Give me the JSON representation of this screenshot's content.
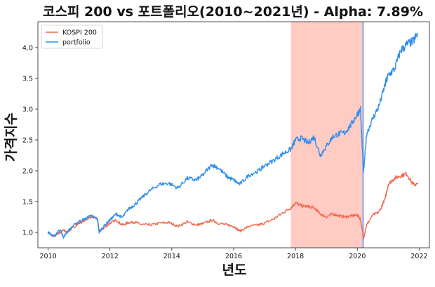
{
  "chart_data": {
    "type": "line",
    "title": "코스피 200 vs 포트폴리오(2010~2021년) - Alpha: 7.89%",
    "xlabel": "년도",
    "ylabel": "가격지수",
    "xlim": [
      2009.67,
      2022.33
    ],
    "ylim": [
      0.75,
      4.42
    ],
    "x_ticks": [
      {
        "value": 2010,
        "label": "2010"
      },
      {
        "value": 2012,
        "label": "2012"
      },
      {
        "value": 2014,
        "label": "2014"
      },
      {
        "value": 2016,
        "label": "2016"
      },
      {
        "value": 2018,
        "label": "2018"
      },
      {
        "value": 2020,
        "label": "2020"
      },
      {
        "value": 2022,
        "label": "2022"
      }
    ],
    "y_ticks": [
      {
        "value": 1.0,
        "label": "1.0"
      },
      {
        "value": 1.5,
        "label": "1.5"
      },
      {
        "value": 2.0,
        "label": "2.0"
      },
      {
        "value": 2.5,
        "label": "2.5"
      },
      {
        "value": 3.0,
        "label": "3.0"
      },
      {
        "value": 3.5,
        "label": "3.5"
      },
      {
        "value": 4.0,
        "label": "4.0"
      }
    ],
    "legend_position": "top-left",
    "grid": false,
    "shaded_regions": [
      {
        "x_start": 2017.85,
        "x_end": 2020.15,
        "color": "#ffcbc2"
      },
      {
        "x_start": 2020.15,
        "x_end": 2020.22,
        "color": "#b4b8e8"
      }
    ],
    "series": [
      {
        "name": "KOSPI 200",
        "color": "#f4674c",
        "x": [
          2010.0,
          2010.1,
          2010.2,
          2010.3,
          2010.4,
          2010.5,
          2010.6,
          2010.8,
          2011.0,
          2011.2,
          2011.4,
          2011.6,
          2011.65,
          2011.8,
          2012.0,
          2012.2,
          2012.4,
          2012.6,
          2012.8,
          2013.0,
          2013.3,
          2013.6,
          2013.9,
          2014.2,
          2014.5,
          2014.8,
          2015.0,
          2015.3,
          2015.5,
          2015.8,
          2016.0,
          2016.2,
          2016.5,
          2016.8,
          2017.0,
          2017.3,
          2017.6,
          2017.85,
          2018.0,
          2018.2,
          2018.4,
          2018.6,
          2018.8,
          2019.0,
          2019.2,
          2019.4,
          2019.6,
          2019.8,
          2020.0,
          2020.1,
          2020.2,
          2020.3,
          2020.5,
          2020.7,
          2020.9,
          2021.0,
          2021.2,
          2021.4,
          2021.6,
          2021.8,
          2021.95
        ],
        "values": [
          1.0,
          0.96,
          0.93,
          0.98,
          1.0,
          1.04,
          1.0,
          1.07,
          1.15,
          1.2,
          1.26,
          1.22,
          1.02,
          1.07,
          1.15,
          1.2,
          1.12,
          1.16,
          1.17,
          1.13,
          1.12,
          1.15,
          1.16,
          1.1,
          1.17,
          1.12,
          1.14,
          1.2,
          1.15,
          1.12,
          1.1,
          1.02,
          1.1,
          1.12,
          1.15,
          1.22,
          1.32,
          1.4,
          1.48,
          1.43,
          1.42,
          1.4,
          1.3,
          1.25,
          1.3,
          1.27,
          1.25,
          1.27,
          1.28,
          1.22,
          0.9,
          1.12,
          1.28,
          1.33,
          1.55,
          1.78,
          1.88,
          1.92,
          1.95,
          1.78,
          1.78
        ]
      },
      {
        "name": "portfolio",
        "color": "#2e8ef0",
        "x": [
          2010.0,
          2010.1,
          2010.2,
          2010.3,
          2010.4,
          2010.5,
          2010.6,
          2010.8,
          2011.0,
          2011.2,
          2011.4,
          2011.6,
          2011.65,
          2011.8,
          2012.0,
          2012.2,
          2012.4,
          2012.6,
          2012.8,
          2013.0,
          2013.3,
          2013.6,
          2013.9,
          2014.2,
          2014.5,
          2014.8,
          2015.0,
          2015.3,
          2015.5,
          2015.8,
          2016.0,
          2016.2,
          2016.5,
          2016.8,
          2017.0,
          2017.3,
          2017.6,
          2017.85,
          2018.0,
          2018.2,
          2018.4,
          2018.6,
          2018.8,
          2019.0,
          2019.2,
          2019.4,
          2019.6,
          2019.8,
          2020.0,
          2020.1,
          2020.2,
          2020.3,
          2020.5,
          2020.7,
          2020.9,
          2021.0,
          2021.2,
          2021.4,
          2021.6,
          2021.8,
          2021.95
        ],
        "values": [
          1.0,
          0.97,
          0.94,
          1.0,
          1.04,
          0.92,
          1.0,
          1.1,
          1.18,
          1.22,
          1.28,
          1.2,
          1.0,
          1.1,
          1.2,
          1.3,
          1.24,
          1.38,
          1.45,
          1.55,
          1.68,
          1.78,
          1.8,
          1.72,
          1.88,
          1.85,
          1.93,
          2.1,
          2.05,
          1.9,
          1.85,
          1.78,
          1.93,
          2.0,
          2.08,
          2.17,
          2.28,
          2.35,
          2.5,
          2.53,
          2.45,
          2.55,
          2.25,
          2.4,
          2.55,
          2.6,
          2.62,
          2.75,
          2.92,
          3.0,
          1.97,
          2.6,
          2.85,
          3.05,
          3.4,
          3.55,
          3.65,
          3.95,
          4.05,
          4.1,
          4.22
        ]
      }
    ]
  }
}
